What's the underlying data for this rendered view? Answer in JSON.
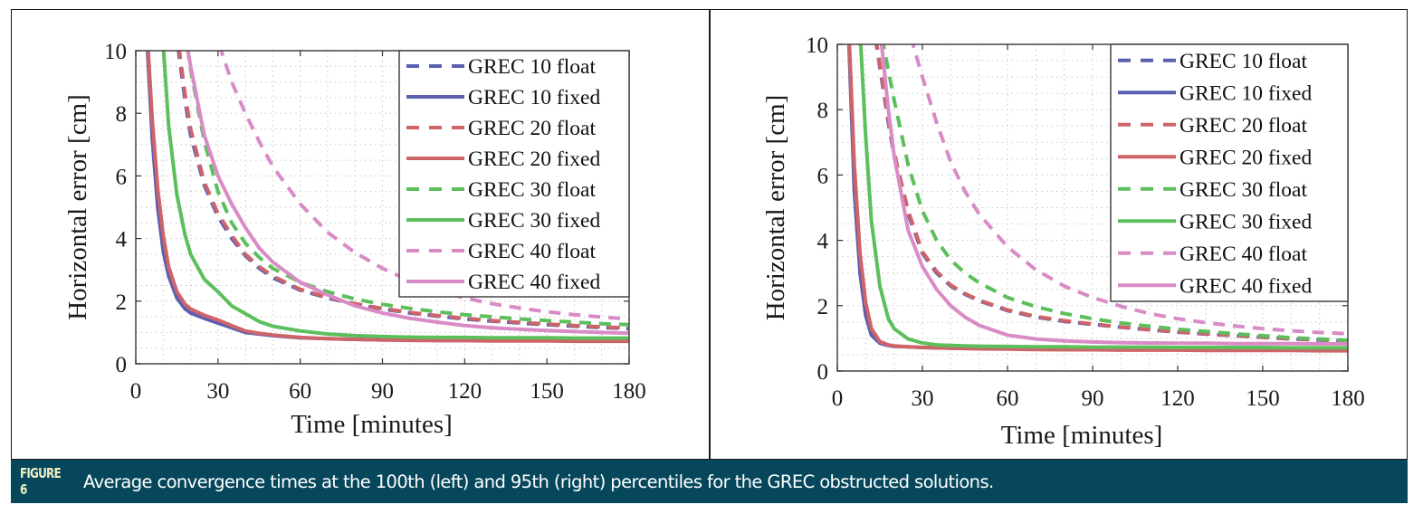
{
  "caption": {
    "label": "FIGURE 6",
    "text": "Average convergence times at the 100th (left) and 95th (right) percentiles for the GREC obstructed solutions.",
    "background_color": "#06475c",
    "label_color": "#f1eec0"
  },
  "chart_data": [
    {
      "type": "line",
      "panel": "left",
      "title": "",
      "percentile": "100th",
      "xlabel": "Time [minutes]",
      "ylabel": "Horizontal error [cm]",
      "xlim": [
        0,
        180
      ],
      "ylim": [
        0,
        10
      ],
      "xticks": [
        0,
        30,
        60,
        90,
        120,
        150,
        180
      ],
      "yticks": [
        0,
        2,
        4,
        6,
        8,
        10
      ],
      "grid": "minor-dotted",
      "legend_position": "top-right",
      "x": [
        4,
        6,
        8,
        10,
        12,
        15,
        18,
        20,
        25,
        30,
        35,
        40,
        45,
        50,
        60,
        70,
        80,
        90,
        100,
        110,
        120,
        130,
        140,
        150,
        160,
        170,
        180
      ],
      "series": [
        {
          "name": "GREC 10 float",
          "style": "dashed",
          "color": "#5b5fb0",
          "values": [
            null,
            null,
            null,
            null,
            null,
            10.4,
            8.4,
            7.3,
            5.7,
            4.7,
            4.0,
            3.45,
            3.05,
            2.75,
            2.35,
            2.1,
            1.9,
            1.75,
            1.62,
            1.52,
            1.43,
            1.36,
            1.3,
            1.25,
            1.2,
            1.16,
            1.12
          ]
        },
        {
          "name": "GREC 10 fixed",
          "style": "solid",
          "color": "#5b5fb0",
          "values": [
            10.5,
            7.2,
            5.0,
            3.6,
            2.8,
            2.1,
            1.75,
            1.62,
            1.45,
            1.3,
            1.15,
            1.0,
            0.95,
            0.9,
            0.83,
            0.8,
            0.78,
            0.77,
            0.76,
            0.75,
            0.75,
            0.74,
            0.74,
            0.74,
            0.73,
            0.73,
            0.73
          ]
        },
        {
          "name": "GREC 20 float",
          "style": "dashed",
          "color": "#cf6468",
          "values": [
            null,
            null,
            null,
            null,
            null,
            10.6,
            8.6,
            7.5,
            5.8,
            4.8,
            4.1,
            3.5,
            3.1,
            2.8,
            2.38,
            2.12,
            1.92,
            1.77,
            1.64,
            1.54,
            1.45,
            1.38,
            1.32,
            1.27,
            1.22,
            1.18,
            1.14
          ]
        },
        {
          "name": "GREC 20 fixed",
          "style": "solid",
          "color": "#cf6468",
          "values": [
            10.8,
            7.8,
            5.6,
            4.1,
            3.1,
            2.3,
            1.9,
            1.75,
            1.55,
            1.4,
            1.22,
            1.05,
            0.97,
            0.92,
            0.84,
            0.8,
            0.78,
            0.76,
            0.75,
            0.74,
            0.74,
            0.73,
            0.73,
            0.73,
            0.72,
            0.72,
            0.72
          ]
        },
        {
          "name": "GREC 30 float",
          "style": "dashed",
          "color": "#5cbf5c",
          "values": [
            null,
            null,
            null,
            null,
            null,
            null,
            10.6,
            9.4,
            7.1,
            5.5,
            4.5,
            3.85,
            3.4,
            3.05,
            2.6,
            2.3,
            2.07,
            1.9,
            1.77,
            1.66,
            1.57,
            1.5,
            1.43,
            1.38,
            1.33,
            1.28,
            1.25
          ]
        },
        {
          "name": "GREC 30 fixed",
          "style": "solid",
          "color": "#5cbf5c",
          "values": [
            null,
            null,
            null,
            10.2,
            7.6,
            5.4,
            4.1,
            3.5,
            2.7,
            2.3,
            1.85,
            1.6,
            1.35,
            1.2,
            1.05,
            0.95,
            0.9,
            0.87,
            0.85,
            0.84,
            0.84,
            0.83,
            0.83,
            0.83,
            0.82,
            0.82,
            0.82
          ]
        },
        {
          "name": "GREC 40 float",
          "style": "dashed",
          "color": "#d98bc6",
          "values": [
            null,
            null,
            null,
            null,
            null,
            null,
            null,
            null,
            null,
            10.3,
            9.0,
            8.0,
            7.1,
            6.3,
            5.1,
            4.2,
            3.55,
            3.05,
            2.65,
            2.35,
            2.1,
            1.92,
            1.78,
            1.66,
            1.57,
            1.49,
            1.43
          ]
        },
        {
          "name": "GREC 40 fixed",
          "style": "solid",
          "color": "#d98bc6",
          "values": [
            null,
            null,
            null,
            null,
            null,
            null,
            10.5,
            9.5,
            7.3,
            6.0,
            5.1,
            4.35,
            3.7,
            3.25,
            2.6,
            2.2,
            1.85,
            1.62,
            1.45,
            1.33,
            1.22,
            1.15,
            1.1,
            1.06,
            1.03,
            1.0,
            0.98
          ]
        }
      ]
    },
    {
      "type": "line",
      "panel": "right",
      "title": "",
      "percentile": "95th",
      "xlabel": "Time [minutes]",
      "ylabel": "Horizontal error [cm]",
      "xlim": [
        0,
        180
      ],
      "ylim": [
        0,
        10
      ],
      "xticks": [
        0,
        30,
        60,
        90,
        120,
        150,
        180
      ],
      "yticks": [
        0,
        2,
        4,
        6,
        8,
        10
      ],
      "grid": "minor-dotted",
      "legend_position": "top-right",
      "x": [
        4,
        6,
        8,
        10,
        12,
        15,
        18,
        20,
        25,
        30,
        35,
        40,
        45,
        50,
        60,
        70,
        80,
        90,
        100,
        110,
        120,
        130,
        140,
        150,
        160,
        170,
        180
      ],
      "series": [
        {
          "name": "GREC 10 float",
          "style": "dashed",
          "color": "#5b5fb0",
          "values": [
            null,
            null,
            null,
            null,
            null,
            9.3,
            7.6,
            6.6,
            4.8,
            3.6,
            3.0,
            2.6,
            2.35,
            2.15,
            1.85,
            1.65,
            1.52,
            1.43,
            1.34,
            1.26,
            1.19,
            1.13,
            1.08,
            1.03,
            0.98,
            0.95,
            0.92
          ]
        },
        {
          "name": "GREC 10 fixed",
          "style": "solid",
          "color": "#5b5fb0",
          "values": [
            10.3,
            5.5,
            3.0,
            1.7,
            1.1,
            0.85,
            0.78,
            0.76,
            0.74,
            0.72,
            0.71,
            0.7,
            0.7,
            0.69,
            0.69,
            0.68,
            0.68,
            0.68,
            0.67,
            0.67,
            0.67,
            0.67,
            0.67,
            0.66,
            0.66,
            0.66,
            0.66
          ]
        },
        {
          "name": "GREC 20 float",
          "style": "dashed",
          "color": "#cf6468",
          "values": [
            null,
            null,
            null,
            null,
            null,
            9.4,
            7.7,
            6.7,
            4.9,
            3.65,
            3.05,
            2.63,
            2.37,
            2.17,
            1.87,
            1.67,
            1.54,
            1.44,
            1.35,
            1.27,
            1.2,
            1.14,
            1.09,
            1.04,
            0.99,
            0.96,
            0.93
          ]
        },
        {
          "name": "GREC 20 fixed",
          "style": "solid",
          "color": "#cf6468",
          "values": [
            10.6,
            6.3,
            3.6,
            2.1,
            1.3,
            0.9,
            0.8,
            0.77,
            0.74,
            0.72,
            0.71,
            0.7,
            0.69,
            0.68,
            0.67,
            0.66,
            0.65,
            0.65,
            0.64,
            0.64,
            0.64,
            0.63,
            0.63,
            0.63,
            0.63,
            0.62,
            0.62
          ]
        },
        {
          "name": "GREC 30 float",
          "style": "dashed",
          "color": "#5cbf5c",
          "values": [
            null,
            null,
            null,
            null,
            null,
            null,
            9.2,
            8.3,
            6.3,
            4.9,
            4.0,
            3.4,
            3.0,
            2.7,
            2.25,
            1.97,
            1.76,
            1.6,
            1.47,
            1.37,
            1.28,
            1.21,
            1.14,
            1.08,
            1.02,
            0.98,
            0.94
          ]
        },
        {
          "name": "GREC 30 fixed",
          "style": "solid",
          "color": "#5cbf5c",
          "values": [
            null,
            null,
            10.4,
            7.2,
            4.6,
            2.6,
            1.6,
            1.3,
            0.98,
            0.86,
            0.8,
            0.78,
            0.77,
            0.76,
            0.75,
            0.74,
            0.74,
            0.73,
            0.73,
            0.73,
            0.72,
            0.72,
            0.72,
            0.72,
            0.71,
            0.71,
            0.71
          ]
        },
        {
          "name": "GREC 40 float",
          "style": "dashed",
          "color": "#d98bc6",
          "values": [
            null,
            null,
            null,
            null,
            null,
            null,
            null,
            null,
            10.5,
            9.0,
            7.6,
            6.4,
            5.5,
            4.8,
            3.8,
            3.1,
            2.6,
            2.25,
            1.98,
            1.76,
            1.6,
            1.48,
            1.38,
            1.3,
            1.23,
            1.18,
            1.14
          ]
        },
        {
          "name": "GREC 40 fixed",
          "style": "solid",
          "color": "#d98bc6",
          "values": [
            null,
            null,
            null,
            null,
            null,
            10.5,
            8.0,
            6.6,
            4.3,
            3.2,
            2.5,
            2.0,
            1.65,
            1.4,
            1.1,
            0.98,
            0.92,
            0.89,
            0.87,
            0.86,
            0.85,
            0.85,
            0.84,
            0.84,
            0.84,
            0.83,
            0.83
          ]
        }
      ]
    }
  ]
}
